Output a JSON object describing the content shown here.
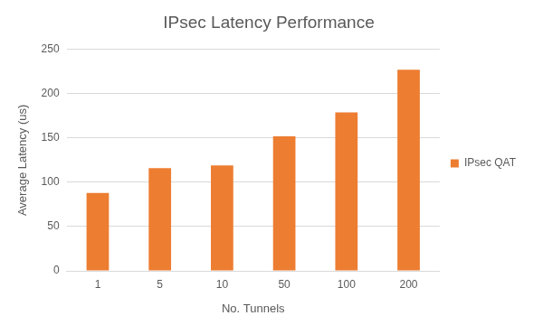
{
  "chart_data": {
    "type": "bar",
    "title": "IPsec Latency Performance",
    "x_label": "No. Tunnels",
    "y_label": "Average Latency (us)",
    "categories": [
      "1",
      "5",
      "10",
      "50",
      "100",
      "200"
    ],
    "series": [
      {
        "name": "IPsec QAT",
        "color": "#ed7d31",
        "values": [
          88,
          116,
          119,
          152,
          179,
          227
        ]
      }
    ],
    "ylim": [
      0,
      250
    ],
    "yticks": [
      0,
      50,
      100,
      150,
      200,
      250
    ],
    "grid": true,
    "legend": "right"
  }
}
